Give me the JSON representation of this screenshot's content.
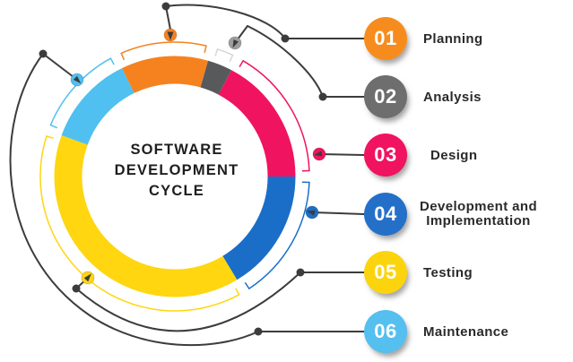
{
  "title": {
    "line1": "SOFTWARE",
    "line2": "DEVELOPMENT",
    "line3": "CYCLE"
  },
  "steps": [
    {
      "number": "01",
      "label": "Planning",
      "color": "#F78C1E"
    },
    {
      "number": "02",
      "label": "Analysis",
      "color": "#6E6E6E"
    },
    {
      "number": "03",
      "label": "Design",
      "color": "#F0135F"
    },
    {
      "number": "04",
      "label": "Development and Implementation",
      "label_lines": [
        "Development and",
        "Implementation"
      ],
      "color": "#2470C9"
    },
    {
      "number": "05",
      "label": "Testing",
      "color": "#FBD40E"
    },
    {
      "number": "06",
      "label": "Maintenance",
      "color": "#55BFEF"
    }
  ],
  "donut": {
    "center_label": "SOFTWARE DEVELOPMENT CYCLE",
    "segments": [
      {
        "name": "planning",
        "color": "#F5821F",
        "bracket_color": "#F5821F",
        "marker_color": "#F5821F",
        "start": -26,
        "end": 16
      },
      {
        "name": "analysis",
        "color": "#58595B",
        "bracket_color": "#D6D6D6",
        "marker_color": "#9E9E9E",
        "start": 16,
        "end": 28
      },
      {
        "name": "design",
        "color": "#F0135F",
        "bracket_color": "#F0135F",
        "marker_color": "#F0135F",
        "start": 28,
        "end": 90
      },
      {
        "name": "development",
        "color": "#1B6EC8",
        "bracket_color": "#1B6EC8",
        "marker_color": "#1B6EC8",
        "start": 90,
        "end": 149
      },
      {
        "name": "testing",
        "color": "#FFD60F",
        "bracket_color": "#FFD60F",
        "marker_color": "#FFD60F",
        "start": 149,
        "end": 290
      },
      {
        "name": "maintenance",
        "color": "#4FC0F0",
        "bracket_color": "#4FC0F0",
        "marker_color": "#4FC0F0",
        "start": 290,
        "end": 334
      }
    ]
  },
  "colors": {
    "leader_line": "#3C3C3C",
    "label_text": "#2A2A2A",
    "number_text": "#FFFFFF",
    "background": "#FFFFFF"
  }
}
